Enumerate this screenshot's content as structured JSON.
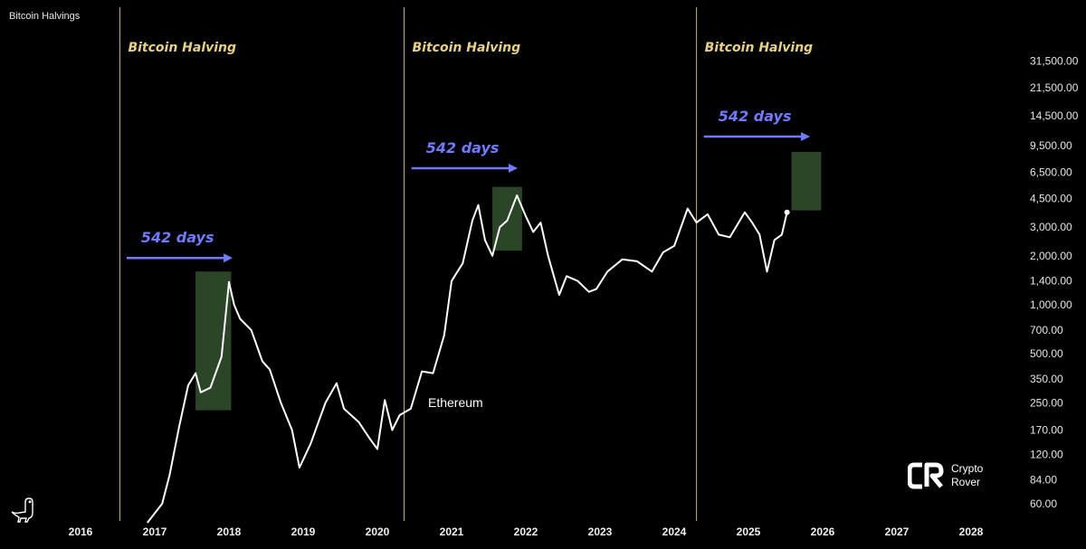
{
  "title": "Bitcoin Halvings",
  "chart_data": {
    "type": "line",
    "title": "Bitcoin Halvings",
    "series": [
      {
        "name": "Ethereum",
        "points": [
          [
            2016.9,
            40
          ],
          [
            2017.1,
            60
          ],
          [
            2017.2,
            90
          ],
          [
            2017.33,
            180
          ],
          [
            2017.45,
            320
          ],
          [
            2017.55,
            380
          ],
          [
            2017.62,
            290
          ],
          [
            2017.75,
            310
          ],
          [
            2017.9,
            480
          ],
          [
            2018.0,
            1380
          ],
          [
            2018.07,
            1000
          ],
          [
            2018.15,
            820
          ],
          [
            2018.3,
            700
          ],
          [
            2018.45,
            450
          ],
          [
            2018.55,
            400
          ],
          [
            2018.7,
            250
          ],
          [
            2018.85,
            170
          ],
          [
            2018.95,
            100
          ],
          [
            2019.1,
            140
          ],
          [
            2019.3,
            250
          ],
          [
            2019.45,
            330
          ],
          [
            2019.55,
            230
          ],
          [
            2019.75,
            190
          ],
          [
            2019.9,
            150
          ],
          [
            2020.0,
            130
          ],
          [
            2020.1,
            260
          ],
          [
            2020.2,
            170
          ],
          [
            2020.3,
            210
          ],
          [
            2020.45,
            230
          ],
          [
            2020.6,
            390
          ],
          [
            2020.75,
            380
          ],
          [
            2020.9,
            650
          ],
          [
            2021.0,
            1400
          ],
          [
            2021.15,
            1800
          ],
          [
            2021.28,
            3300
          ],
          [
            2021.36,
            4100
          ],
          [
            2021.45,
            2500
          ],
          [
            2021.55,
            2000
          ],
          [
            2021.65,
            3000
          ],
          [
            2021.75,
            3300
          ],
          [
            2021.88,
            4700
          ],
          [
            2022.0,
            3500
          ],
          [
            2022.1,
            2800
          ],
          [
            2022.2,
            3200
          ],
          [
            2022.3,
            2000
          ],
          [
            2022.45,
            1150
          ],
          [
            2022.55,
            1500
          ],
          [
            2022.7,
            1400
          ],
          [
            2022.85,
            1200
          ],
          [
            2022.95,
            1250
          ],
          [
            2023.1,
            1600
          ],
          [
            2023.3,
            1900
          ],
          [
            2023.5,
            1850
          ],
          [
            2023.7,
            1600
          ],
          [
            2023.85,
            2100
          ],
          [
            2024.0,
            2300
          ],
          [
            2024.18,
            3900
          ],
          [
            2024.3,
            3200
          ],
          [
            2024.45,
            3600
          ],
          [
            2024.6,
            2700
          ],
          [
            2024.75,
            2600
          ],
          [
            2024.95,
            3700
          ],
          [
            2025.05,
            3200
          ],
          [
            2025.15,
            2700
          ],
          [
            2025.25,
            1600
          ],
          [
            2025.35,
            2500
          ],
          [
            2025.45,
            2700
          ],
          [
            2025.52,
            3700
          ]
        ]
      }
    ],
    "halvings": [
      {
        "x": 2016.53,
        "label": "Bitcoin Halving"
      },
      {
        "x": 2020.36,
        "label": "Bitcoin Halving"
      },
      {
        "x": 2024.3,
        "label": "Bitcoin Halving"
      }
    ],
    "arrows": [
      {
        "x0": 2016.62,
        "x1": 2018.05,
        "y": 1940,
        "label": "542 days"
      },
      {
        "x0": 2020.46,
        "x1": 2021.89,
        "y": 6900,
        "label": "542 days"
      },
      {
        "x0": 2024.4,
        "x1": 2025.83,
        "y": 10800,
        "label": "542 days"
      }
    ],
    "boxes": [
      {
        "x0": 2017.55,
        "x1": 2018.03,
        "y0": 225,
        "y1": 1600
      },
      {
        "x0": 2021.55,
        "x1": 2021.95,
        "y0": 2150,
        "y1": 5300
      },
      {
        "x0": 2025.58,
        "x1": 2025.98,
        "y0": 3800,
        "y1": 8700
      }
    ],
    "annotation": "Ethereum",
    "x_ticks": [
      "2016",
      "2017",
      "2018",
      "2019",
      "2020",
      "2021",
      "2022",
      "2023",
      "2024",
      "2025",
      "2026",
      "2027",
      "2028"
    ],
    "y_ticks": [
      "31,500.00",
      "21,500.00",
      "14,500.00",
      "9,500.00",
      "6,500.00",
      "4,500.00",
      "3,000.00",
      "2,000.00",
      "1,400.00",
      "1,000.00",
      "700.00",
      "500.00",
      "350.00",
      "250.00",
      "170.00",
      "120.00",
      "84.00",
      "60.00"
    ],
    "y_scale": "log",
    "grid": false
  },
  "logo": {
    "line1": "Crypto",
    "line2": "Rover"
  },
  "colors": {
    "background": "#000000",
    "line": "#ffffff",
    "halving": "#e8d37c",
    "arrow": "#6e7bff",
    "box": "#2c4a28"
  }
}
